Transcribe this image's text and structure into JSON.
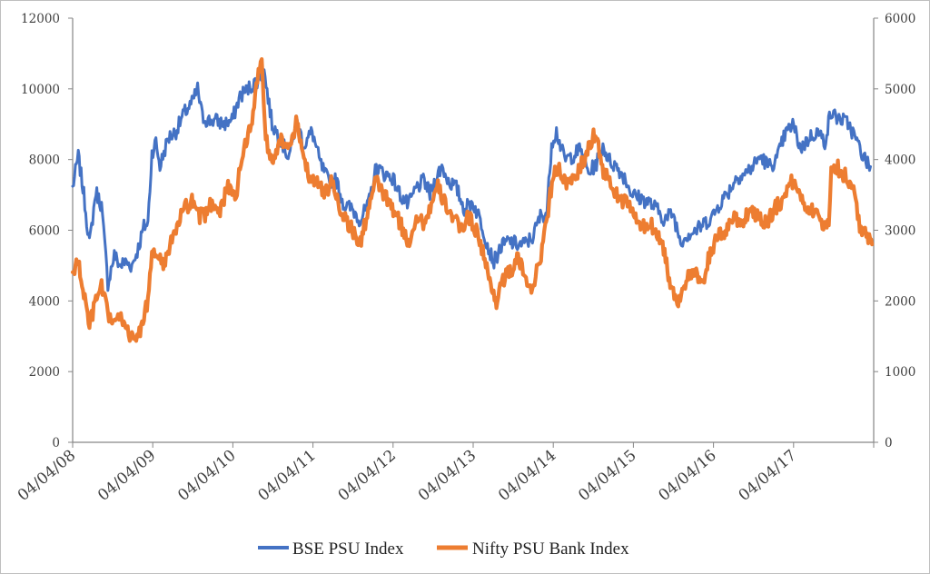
{
  "chart_data": {
    "type": "line",
    "title": "",
    "x_tick_labels": [
      "04/04/08",
      "04/04/09",
      "04/04/10",
      "04/04/11",
      "04/04/12",
      "04/04/13",
      "04/04/14",
      "04/04/15",
      "04/04/16",
      "04/04/17"
    ],
    "x_range_years": [
      2008.26,
      2018.26
    ],
    "left_axis": {
      "ylim": [
        0,
        12000
      ],
      "ticks": [
        0,
        2000,
        4000,
        6000,
        8000,
        10000,
        12000
      ],
      "tick_labels": [
        "0",
        "2000",
        "4000",
        "6000",
        "8000",
        "10000",
        "12000"
      ]
    },
    "right_axis": {
      "ylim": [
        0,
        6000
      ],
      "ticks": [
        0,
        1000,
        2000,
        3000,
        4000,
        5000,
        6000
      ],
      "tick_labels": [
        "0",
        "1000",
        "2000",
        "3000",
        "4000",
        "5000",
        "6000"
      ]
    },
    "series": [
      {
        "name": "BSE PSU Index",
        "axis": "left",
        "color": "#4472c4",
        "points": [
          [
            2008.26,
            7200
          ],
          [
            2008.33,
            8100
          ],
          [
            2008.4,
            7000
          ],
          [
            2008.47,
            5600
          ],
          [
            2008.55,
            7100
          ],
          [
            2008.62,
            6700
          ],
          [
            2008.7,
            4500
          ],
          [
            2008.78,
            5300
          ],
          [
            2008.85,
            5000
          ],
          [
            2008.92,
            5100
          ],
          [
            2009.0,
            5000
          ],
          [
            2009.08,
            5500
          ],
          [
            2009.15,
            6100
          ],
          [
            2009.2,
            6200
          ],
          [
            2009.25,
            8200
          ],
          [
            2009.3,
            8500
          ],
          [
            2009.35,
            7800
          ],
          [
            2009.45,
            8600
          ],
          [
            2009.55,
            8800
          ],
          [
            2009.65,
            9300
          ],
          [
            2009.75,
            9600
          ],
          [
            2009.82,
            10000
          ],
          [
            2009.88,
            9200
          ],
          [
            2009.95,
            9100
          ],
          [
            2010.05,
            9100
          ],
          [
            2010.15,
            9000
          ],
          [
            2010.25,
            9100
          ],
          [
            2010.35,
            9800
          ],
          [
            2010.45,
            10000
          ],
          [
            2010.55,
            10200
          ],
          [
            2010.65,
            10500
          ],
          [
            2010.75,
            9000
          ],
          [
            2010.85,
            8600
          ],
          [
            2010.95,
            8100
          ],
          [
            2011.0,
            8400
          ],
          [
            2011.05,
            9100
          ],
          [
            2011.15,
            8400
          ],
          [
            2011.25,
            8800
          ],
          [
            2011.35,
            7900
          ],
          [
            2011.45,
            7400
          ],
          [
            2011.55,
            7400
          ],
          [
            2011.65,
            6700
          ],
          [
            2011.75,
            6600
          ],
          [
            2011.85,
            6300
          ],
          [
            2011.95,
            6700
          ],
          [
            2012.05,
            7800
          ],
          [
            2012.15,
            7600
          ],
          [
            2012.25,
            7500
          ],
          [
            2012.35,
            7000
          ],
          [
            2012.45,
            6700
          ],
          [
            2012.55,
            7200
          ],
          [
            2012.65,
            7400
          ],
          [
            2012.72,
            7000
          ],
          [
            2012.8,
            7500
          ],
          [
            2012.87,
            7800
          ],
          [
            2012.95,
            7400
          ],
          [
            2013.05,
            7200
          ],
          [
            2013.15,
            6600
          ],
          [
            2013.25,
            6800
          ],
          [
            2013.35,
            6300
          ],
          [
            2013.45,
            5500
          ],
          [
            2013.52,
            5100
          ],
          [
            2013.6,
            5500
          ],
          [
            2013.7,
            5700
          ],
          [
            2013.8,
            5600
          ],
          [
            2013.9,
            5600
          ],
          [
            2014.0,
            5800
          ],
          [
            2014.1,
            6400
          ],
          [
            2014.18,
            6500
          ],
          [
            2014.24,
            8500
          ],
          [
            2014.3,
            8800
          ],
          [
            2014.4,
            8000
          ],
          [
            2014.5,
            8100
          ],
          [
            2014.6,
            8300
          ],
          [
            2014.7,
            7600
          ],
          [
            2014.8,
            7900
          ],
          [
            2014.88,
            8400
          ],
          [
            2014.95,
            8000
          ],
          [
            2015.05,
            7800
          ],
          [
            2015.15,
            7500
          ],
          [
            2015.25,
            7000
          ],
          [
            2015.35,
            6900
          ],
          [
            2015.45,
            6800
          ],
          [
            2015.55,
            6600
          ],
          [
            2015.65,
            6300
          ],
          [
            2015.75,
            6500
          ],
          [
            2015.85,
            5700
          ],
          [
            2015.95,
            5900
          ],
          [
            2016.05,
            6000
          ],
          [
            2016.15,
            6200
          ],
          [
            2016.25,
            6400
          ],
          [
            2016.35,
            6800
          ],
          [
            2016.45,
            7100
          ],
          [
            2016.55,
            7500
          ],
          [
            2016.65,
            7600
          ],
          [
            2016.75,
            7800
          ],
          [
            2016.85,
            8100
          ],
          [
            2016.95,
            7800
          ],
          [
            2017.05,
            8000
          ],
          [
            2017.15,
            8700
          ],
          [
            2017.25,
            9000
          ],
          [
            2017.35,
            8300
          ],
          [
            2017.45,
            8600
          ],
          [
            2017.55,
            8800
          ],
          [
            2017.65,
            8500
          ],
          [
            2017.72,
            9300
          ],
          [
            2017.8,
            9200
          ],
          [
            2017.88,
            9100
          ],
          [
            2017.95,
            9000
          ],
          [
            2018.05,
            8500
          ],
          [
            2018.15,
            8000
          ],
          [
            2018.22,
            7800
          ]
        ]
      },
      {
        "name": "Nifty PSU Bank Index",
        "axis": "right",
        "color": "#ed7d31",
        "points": [
          [
            2008.26,
            2400
          ],
          [
            2008.33,
            2550
          ],
          [
            2008.4,
            2100
          ],
          [
            2008.47,
            1650
          ],
          [
            2008.55,
            2000
          ],
          [
            2008.62,
            2200
          ],
          [
            2008.7,
            1800
          ],
          [
            2008.78,
            1700
          ],
          [
            2008.85,
            1750
          ],
          [
            2008.92,
            1700
          ],
          [
            2009.0,
            1450
          ],
          [
            2009.08,
            1500
          ],
          [
            2009.15,
            1800
          ],
          [
            2009.2,
            2000
          ],
          [
            2009.25,
            2600
          ],
          [
            2009.3,
            2700
          ],
          [
            2009.38,
            2500
          ],
          [
            2009.45,
            2700
          ],
          [
            2009.55,
            3000
          ],
          [
            2009.65,
            3300
          ],
          [
            2009.75,
            3400
          ],
          [
            2009.82,
            3200
          ],
          [
            2009.9,
            3200
          ],
          [
            2010.0,
            3400
          ],
          [
            2010.1,
            3300
          ],
          [
            2010.2,
            3600
          ],
          [
            2010.3,
            3500
          ],
          [
            2010.4,
            4200
          ],
          [
            2010.5,
            4500
          ],
          [
            2010.58,
            5300
          ],
          [
            2010.62,
            5400
          ],
          [
            2010.67,
            4300
          ],
          [
            2010.75,
            4000
          ],
          [
            2010.85,
            4300
          ],
          [
            2010.95,
            4100
          ],
          [
            2011.05,
            4500
          ],
          [
            2011.12,
            4200
          ],
          [
            2011.2,
            3800
          ],
          [
            2011.3,
            3700
          ],
          [
            2011.4,
            3500
          ],
          [
            2011.5,
            3700
          ],
          [
            2011.6,
            3300
          ],
          [
            2011.7,
            3100
          ],
          [
            2011.8,
            2900
          ],
          [
            2011.85,
            2800
          ],
          [
            2011.95,
            3300
          ],
          [
            2012.05,
            3700
          ],
          [
            2012.15,
            3500
          ],
          [
            2012.25,
            3300
          ],
          [
            2012.35,
            3100
          ],
          [
            2012.45,
            2800
          ],
          [
            2012.55,
            3200
          ],
          [
            2012.65,
            3100
          ],
          [
            2012.75,
            3400
          ],
          [
            2012.82,
            3600
          ],
          [
            2012.9,
            3400
          ],
          [
            2013.0,
            3200
          ],
          [
            2013.1,
            3000
          ],
          [
            2013.2,
            3200
          ],
          [
            2013.3,
            3000
          ],
          [
            2013.38,
            2700
          ],
          [
            2013.48,
            2200
          ],
          [
            2013.55,
            2000
          ],
          [
            2013.62,
            2300
          ],
          [
            2013.72,
            2400
          ],
          [
            2013.82,
            2600
          ],
          [
            2013.92,
            2300
          ],
          [
            2014.0,
            2200
          ],
          [
            2014.08,
            2500
          ],
          [
            2014.16,
            3000
          ],
          [
            2014.22,
            3500
          ],
          [
            2014.28,
            3900
          ],
          [
            2014.36,
            3800
          ],
          [
            2014.45,
            3600
          ],
          [
            2014.55,
            3800
          ],
          [
            2014.65,
            4000
          ],
          [
            2014.75,
            4300
          ],
          [
            2014.8,
            4400
          ],
          [
            2014.86,
            3900
          ],
          [
            2014.95,
            3700
          ],
          [
            2015.05,
            3500
          ],
          [
            2015.15,
            3400
          ],
          [
            2015.25,
            3300
          ],
          [
            2015.35,
            3000
          ],
          [
            2015.45,
            3100
          ],
          [
            2015.55,
            3000
          ],
          [
            2015.65,
            2700
          ],
          [
            2015.72,
            2200
          ],
          [
            2015.82,
            2000
          ],
          [
            2015.92,
            2300
          ],
          [
            2016.02,
            2400
          ],
          [
            2016.12,
            2200
          ],
          [
            2016.22,
            2700
          ],
          [
            2016.32,
            2900
          ],
          [
            2016.42,
            3000
          ],
          [
            2016.52,
            3200
          ],
          [
            2016.62,
            3100
          ],
          [
            2016.72,
            3300
          ],
          [
            2016.82,
            3200
          ],
          [
            2016.92,
            3100
          ],
          [
            2017.02,
            3300
          ],
          [
            2017.1,
            3400
          ],
          [
            2017.18,
            3600
          ],
          [
            2017.26,
            3700
          ],
          [
            2017.34,
            3500
          ],
          [
            2017.44,
            3300
          ],
          [
            2017.54,
            3300
          ],
          [
            2017.62,
            3000
          ],
          [
            2017.66,
            3200
          ],
          [
            2017.7,
            3000
          ],
          [
            2017.73,
            3950
          ],
          [
            2017.8,
            3900
          ],
          [
            2017.88,
            3800
          ],
          [
            2017.95,
            3700
          ],
          [
            2018.02,
            3500
          ],
          [
            2018.1,
            3000
          ],
          [
            2018.18,
            2900
          ],
          [
            2018.24,
            2800
          ]
        ]
      }
    ],
    "legend": {
      "position": "bottom"
    }
  }
}
